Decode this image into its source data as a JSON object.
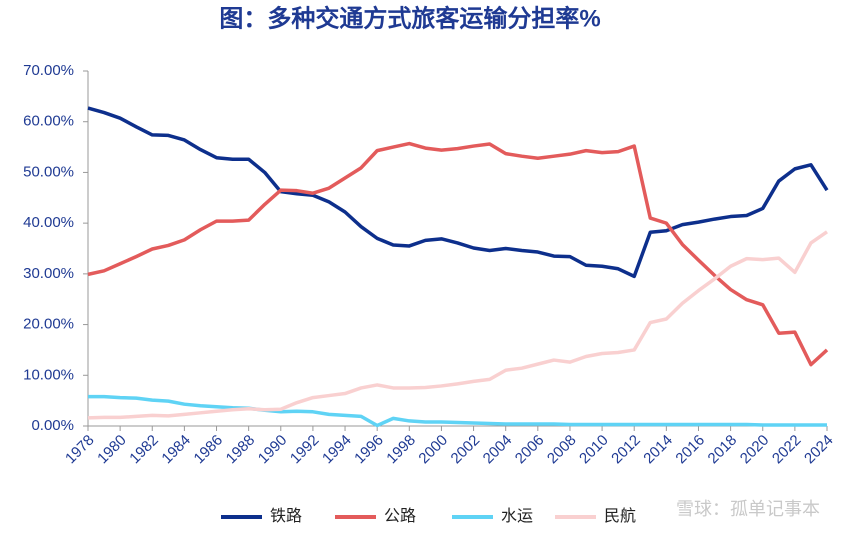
{
  "chart_data": {
    "type": "line",
    "title": "图：多种交通方式旅客运输分担率%",
    "watermark": "雪球：孤单记事本",
    "x": [
      1978,
      1979,
      1980,
      1981,
      1982,
      1983,
      1984,
      1985,
      1986,
      1987,
      1988,
      1989,
      1990,
      1991,
      1992,
      1993,
      1994,
      1995,
      1996,
      1997,
      1998,
      1999,
      2000,
      2001,
      2002,
      2003,
      2004,
      2005,
      2006,
      2007,
      2008,
      2009,
      2010,
      2011,
      2012,
      2013,
      2014,
      2015,
      2016,
      2017,
      2018,
      2019,
      2020,
      2021,
      2022,
      2023,
      2024
    ],
    "xlim": [
      1978,
      2024
    ],
    "xticks": [
      1978,
      1980,
      1982,
      1984,
      1986,
      1988,
      1990,
      1992,
      1994,
      1996,
      1998,
      2000,
      2002,
      2004,
      2006,
      2008,
      2010,
      2012,
      2014,
      2016,
      2018,
      2020,
      2022,
      2024
    ],
    "ylim": [
      0,
      70
    ],
    "yticks": [
      {
        "value": 0,
        "label": "0.00%"
      },
      {
        "value": 10,
        "label": "10.00%"
      },
      {
        "value": 20,
        "label": "20.00%"
      },
      {
        "value": 30,
        "label": "30.00%"
      },
      {
        "value": 40,
        "label": "40.00%"
      },
      {
        "value": 50,
        "label": "50.00%"
      },
      {
        "value": 60,
        "label": "60.00%"
      },
      {
        "value": 70,
        "label": "70.00%"
      }
    ],
    "grid": false,
    "legend": "bottom",
    "series": [
      {
        "name": "铁路",
        "color": "#0d2f8c",
        "values": [
          62.7,
          61.8,
          60.7,
          59.0,
          57.4,
          57.3,
          56.4,
          54.5,
          52.9,
          52.6,
          52.6,
          50.0,
          46.2,
          45.8,
          45.5,
          44.2,
          42.2,
          39.3,
          37.0,
          35.7,
          35.5,
          36.6,
          36.9,
          36.1,
          35.1,
          34.6,
          35.0,
          34.6,
          34.3,
          33.5,
          33.4,
          31.7,
          31.5,
          31.0,
          29.5,
          38.2,
          38.5,
          39.7,
          40.2,
          40.8,
          41.3,
          41.5,
          42.9,
          48.3,
          50.7,
          51.5,
          46.5
        ]
      },
      {
        "name": "公路",
        "color": "#e35b5b",
        "values": [
          29.9,
          30.6,
          32.0,
          33.4,
          34.9,
          35.6,
          36.7,
          38.7,
          40.4,
          40.4,
          40.6,
          43.7,
          46.5,
          46.4,
          45.9,
          46.9,
          48.9,
          50.9,
          54.3,
          55.0,
          55.7,
          54.8,
          54.4,
          54.7,
          55.2,
          55.6,
          53.7,
          53.2,
          52.8,
          53.2,
          53.6,
          54.3,
          53.9,
          54.1,
          55.2,
          41.0,
          40.0,
          35.8,
          32.7,
          29.7,
          26.9,
          24.9,
          23.9,
          18.3,
          18.5,
          12.1,
          15.0
        ]
      },
      {
        "name": "水运",
        "color": "#5fd3f5",
        "values": [
          5.8,
          5.8,
          5.6,
          5.5,
          5.1,
          4.9,
          4.3,
          4.0,
          3.8,
          3.6,
          3.5,
          3.1,
          2.8,
          2.9,
          2.8,
          2.3,
          2.1,
          1.9,
          0.1,
          1.5,
          1.0,
          0.8,
          0.8,
          0.7,
          0.6,
          0.5,
          0.4,
          0.4,
          0.4,
          0.4,
          0.3,
          0.3,
          0.3,
          0.3,
          0.3,
          0.3,
          0.3,
          0.3,
          0.3,
          0.3,
          0.3,
          0.3,
          0.2,
          0.2,
          0.2,
          0.2,
          0.2
        ]
      },
      {
        "name": "民航",
        "color": "#f9d0d0",
        "values": [
          1.6,
          1.7,
          1.7,
          1.9,
          2.1,
          2.0,
          2.3,
          2.6,
          2.9,
          3.2,
          3.4,
          3.2,
          3.3,
          4.6,
          5.6,
          6.0,
          6.4,
          7.5,
          8.1,
          7.5,
          7.5,
          7.6,
          7.9,
          8.3,
          8.8,
          9.2,
          11.0,
          11.4,
          12.2,
          13.0,
          12.6,
          13.7,
          14.3,
          14.5,
          15.0,
          20.4,
          21.1,
          24.2,
          26.7,
          29.0,
          31.5,
          33.0,
          32.8,
          33.1,
          30.3,
          36.1,
          38.3
        ]
      }
    ]
  }
}
